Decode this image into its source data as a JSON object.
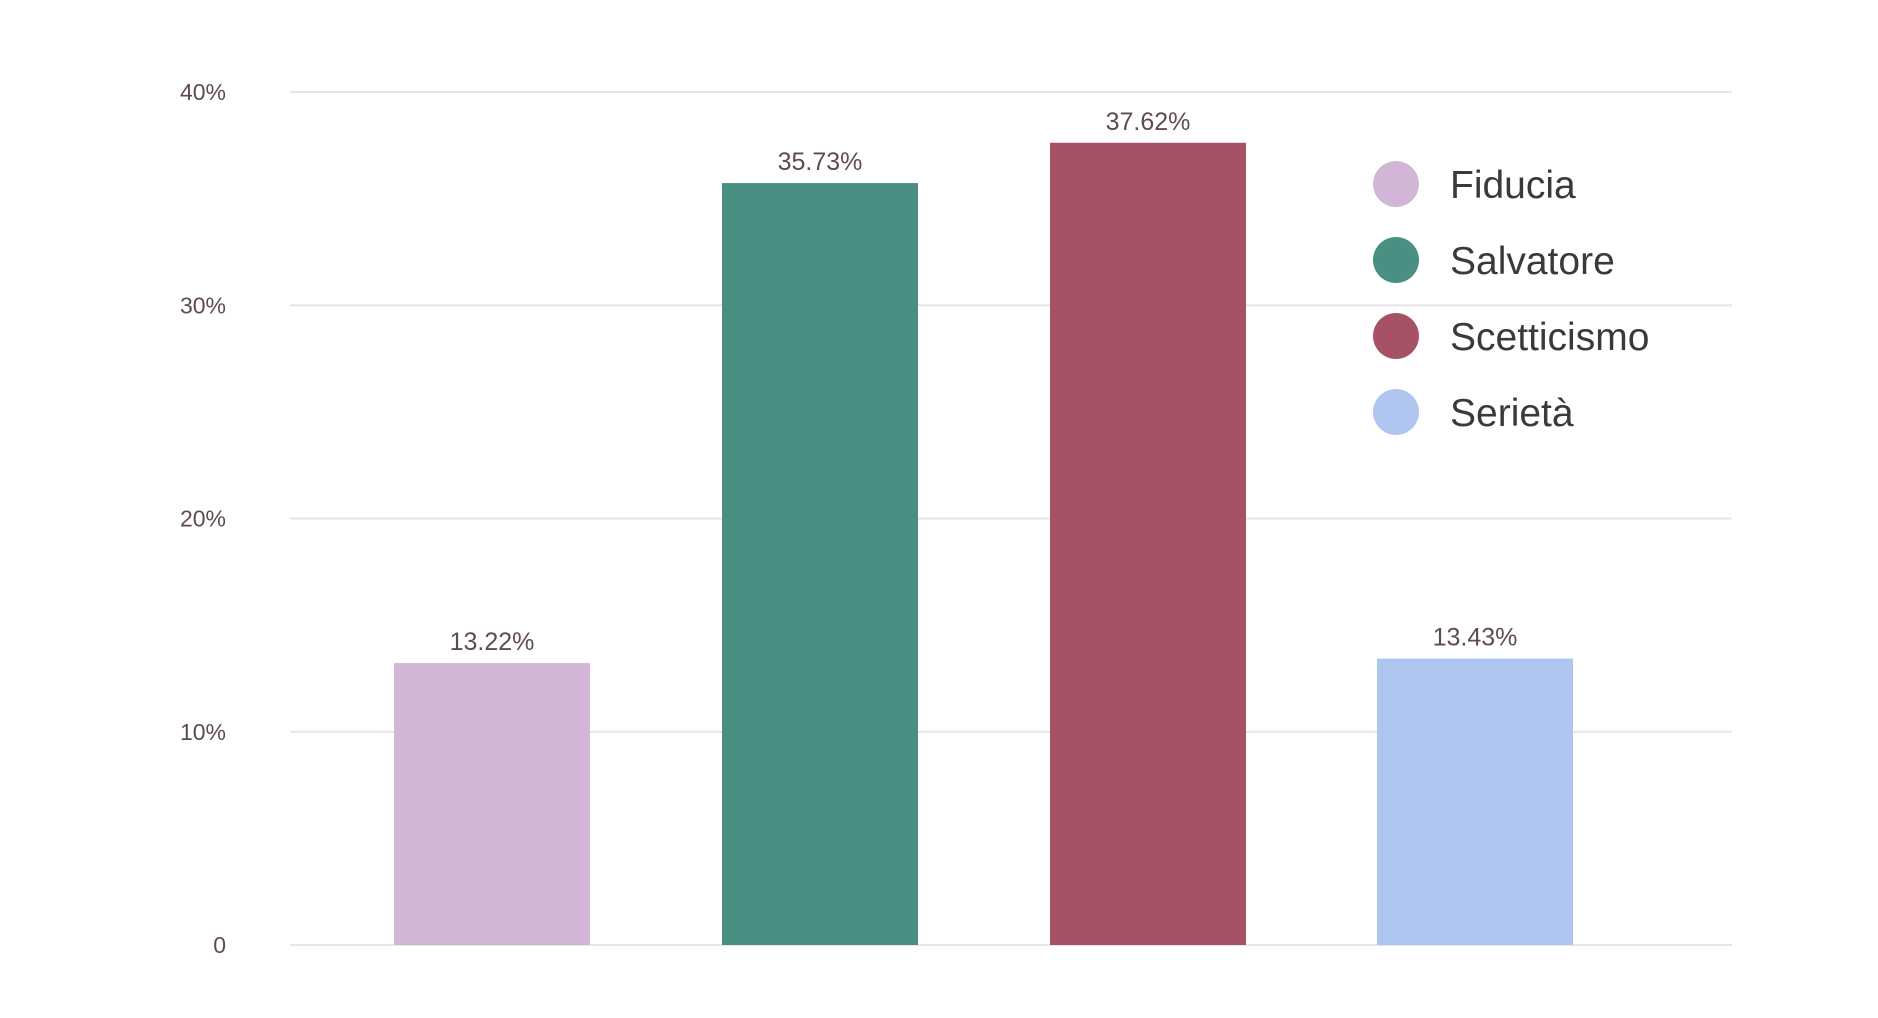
{
  "chart_data": {
    "type": "bar",
    "categories": [
      "Fiducia",
      "Salvatore",
      "Scetticismo",
      "Serietà"
    ],
    "values": [
      13.22,
      35.73,
      37.62,
      13.43
    ],
    "data_labels": [
      "13.22%",
      "35.73%",
      "37.62%",
      "13.43%"
    ],
    "colors": [
      "#d1b6d6",
      "#4a8e84",
      "#a65264",
      "#adc5ef"
    ],
    "y_ticks": [
      0,
      10,
      20,
      30,
      40
    ],
    "y_tick_labels": [
      "0",
      "10%",
      "20%",
      "30%",
      "40%"
    ],
    "ylim": [
      0,
      40
    ],
    "grid": true,
    "legend": {
      "placement": "top-right",
      "entries": [
        "Fiducia",
        "Salvatore",
        "Scetticismo",
        "Serietà"
      ]
    }
  }
}
